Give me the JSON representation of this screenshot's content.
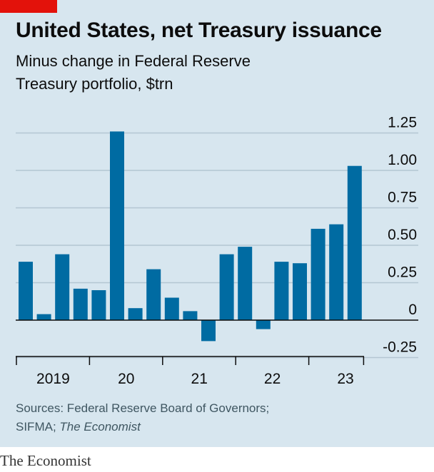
{
  "header": {
    "title": "United States, net Treasury issuance",
    "subtitle_line1": "Minus change in Federal Reserve",
    "subtitle_line2": "Treasury portfolio, $trn"
  },
  "footer": {
    "source_line1": "Sources: Federal Reserve Board of Governors;",
    "source_line2_prefix": "SIFMA; ",
    "source_line2_italic": "The Economist",
    "brand": "The Economist"
  },
  "colors": {
    "bar": "#006ba2",
    "background": "#d7e6ef",
    "accent": "#e3120b"
  },
  "chart_data": {
    "type": "bar",
    "title": "United States, net Treasury issuance",
    "subtitle": "Minus change in Federal Reserve Treasury portfolio, $trn",
    "frequency": "quarterly",
    "x_tick_labels": [
      "2019",
      "20",
      "21",
      "22",
      "23"
    ],
    "y_ticks": [
      -0.25,
      0,
      0.25,
      0.5,
      0.75,
      1.0,
      1.25
    ],
    "y_tick_labels": [
      "-0.25",
      "0",
      "0.25",
      "0.50",
      "0.75",
      "1.00",
      "1.25"
    ],
    "ylim": [
      -0.25,
      1.25
    ],
    "y_axis_position": "right",
    "grid": true,
    "values": [
      0.39,
      0.04,
      0.44,
      0.21,
      0.2,
      1.26,
      0.08,
      0.34,
      0.15,
      0.06,
      -0.14,
      0.44,
      0.49,
      -0.06,
      0.39,
      0.38,
      0.61,
      0.64,
      1.03
    ]
  }
}
